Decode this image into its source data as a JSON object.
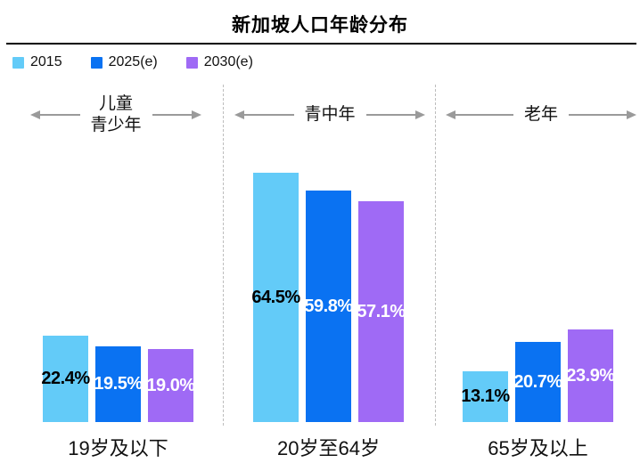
{
  "title": "新加坡人口年龄分布",
  "legend": {
    "items": [
      {
        "label": "2015",
        "color": "#63CBF8"
      },
      {
        "label": "2025(e)",
        "color": "#0A72F2"
      },
      {
        "label": "2030(e)",
        "color": "#9F6AF5"
      }
    ]
  },
  "age_bands": [
    {
      "lines": [
        "儿童",
        "青少年"
      ]
    },
    {
      "lines": [
        "青中年"
      ]
    },
    {
      "lines": [
        "老年"
      ]
    }
  ],
  "chart_data": {
    "type": "bar",
    "title": "新加坡人口年龄分布",
    "categories": [
      "19岁及以下",
      "20岁至64岁",
      "65岁及以上"
    ],
    "series": [
      {
        "name": "2015",
        "color": "#63CBF8",
        "label_color": "#000000",
        "values": [
          22.4,
          64.5,
          13.1
        ]
      },
      {
        "name": "2025(e)",
        "color": "#0A72F2",
        "label_color": "#FFFFFF",
        "values": [
          19.5,
          59.8,
          20.7
        ]
      },
      {
        "name": "2030(e)",
        "color": "#9F6AF5",
        "label_color": "#FFFFFF",
        "values": [
          19.0,
          57.1,
          23.9
        ]
      }
    ],
    "value_suffix": "%",
    "value_labels": "inside-center",
    "annotations": [
      "儿童 青少年",
      "青中年",
      "老年"
    ],
    "ylim": [
      0,
      70
    ],
    "grid": false,
    "axes_hidden": true,
    "legend_position": "top-left"
  }
}
